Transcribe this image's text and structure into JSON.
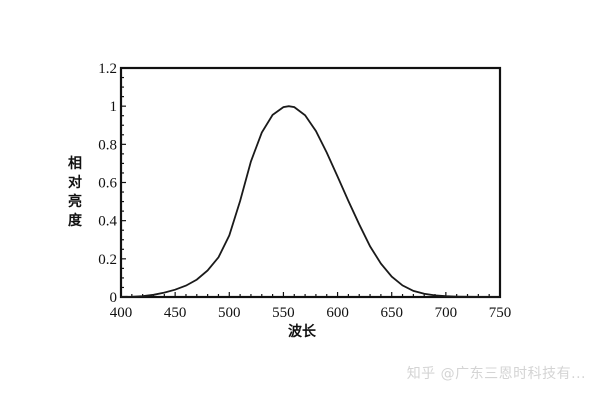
{
  "chart_data": {
    "type": "line",
    "title": "",
    "xlabel": "波长",
    "ylabel": "相对亮度",
    "xlim": [
      400,
      750
    ],
    "ylim": [
      0,
      1.2
    ],
    "xticks": [
      400,
      450,
      500,
      550,
      600,
      650,
      700,
      750
    ],
    "yticks": [
      0,
      0.2,
      0.4,
      0.6,
      0.8,
      1,
      1.2
    ],
    "ytick_labels": [
      "0",
      "0.2",
      "0.4",
      "0.6",
      "0.8",
      "1",
      "1.2"
    ],
    "grid": false,
    "legend": null,
    "series": [
      {
        "name": "相对亮度",
        "x": [
          400,
          410,
          420,
          430,
          440,
          450,
          460,
          470,
          480,
          490,
          500,
          510,
          520,
          530,
          540,
          550,
          555,
          560,
          570,
          580,
          590,
          600,
          610,
          620,
          630,
          640,
          650,
          660,
          670,
          680,
          690,
          700,
          710,
          720,
          730,
          740,
          750
        ],
        "values": [
          0.0004,
          0.0012,
          0.004,
          0.0116,
          0.023,
          0.038,
          0.06,
          0.091,
          0.139,
          0.208,
          0.323,
          0.503,
          0.71,
          0.862,
          0.954,
          0.995,
          1.0,
          0.995,
          0.952,
          0.87,
          0.757,
          0.631,
          0.503,
          0.381,
          0.265,
          0.175,
          0.107,
          0.061,
          0.032,
          0.017,
          0.0082,
          0.0041,
          0.0021,
          0.001,
          0.0005,
          0.0002,
          0.0001
        ]
      }
    ]
  },
  "labels": {
    "ylabel_chars": [
      "相",
      "对",
      "亮",
      "度"
    ],
    "xlabel": "波长"
  },
  "watermark": "知乎 @广东三恩时科技有..."
}
